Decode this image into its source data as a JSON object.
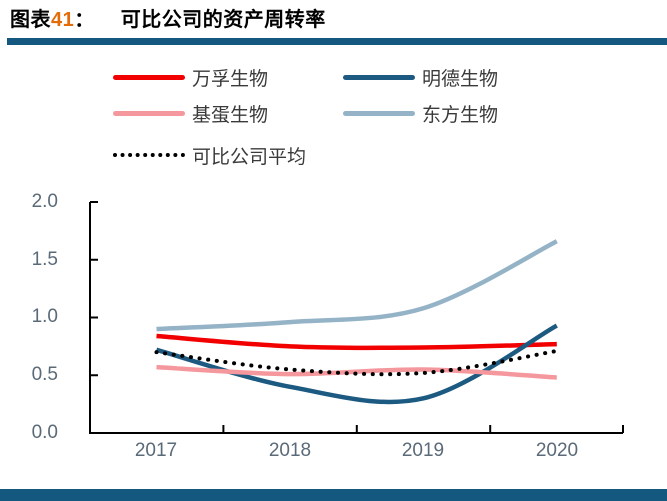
{
  "header": {
    "figure_prefix": "图表",
    "figure_number": "41",
    "figure_colon": "：",
    "figure_title": "可比公司的资产周转率"
  },
  "colors": {
    "accent_bar": "#14577f",
    "figure_number_accent": "#e36c09",
    "axis_line": "#000000",
    "tick_label": "#5a6a78"
  },
  "chart_data": {
    "type": "line",
    "smooth": true,
    "grid": false,
    "legend_position": "top-left",
    "x": [
      "2017",
      "2018",
      "2019",
      "2020"
    ],
    "xlabel": "",
    "ylabel": "",
    "ylim": [
      0.0,
      2.0
    ],
    "yticks": [
      "0.0",
      "0.5",
      "1.0",
      "1.5",
      "2.0"
    ],
    "series": [
      {
        "name": "万孚生物",
        "color": "#f20000",
        "style": "solid",
        "values": [
          0.84,
          0.75,
          0.74,
          0.77
        ]
      },
      {
        "name": "明德生物",
        "color": "#1d5a82",
        "style": "solid",
        "values": [
          0.72,
          0.4,
          0.3,
          0.93
        ]
      },
      {
        "name": "基蛋生物",
        "color": "#f5989d",
        "style": "solid",
        "values": [
          0.57,
          0.51,
          0.55,
          0.48
        ]
      },
      {
        "name": "东方生物",
        "color": "#95b3c7",
        "style": "solid",
        "values": [
          0.9,
          0.96,
          1.08,
          1.66
        ]
      },
      {
        "name": "可比公司平均",
        "color": "#000000",
        "style": "dotted",
        "values": [
          0.7,
          0.55,
          0.52,
          0.71
        ]
      }
    ]
  }
}
